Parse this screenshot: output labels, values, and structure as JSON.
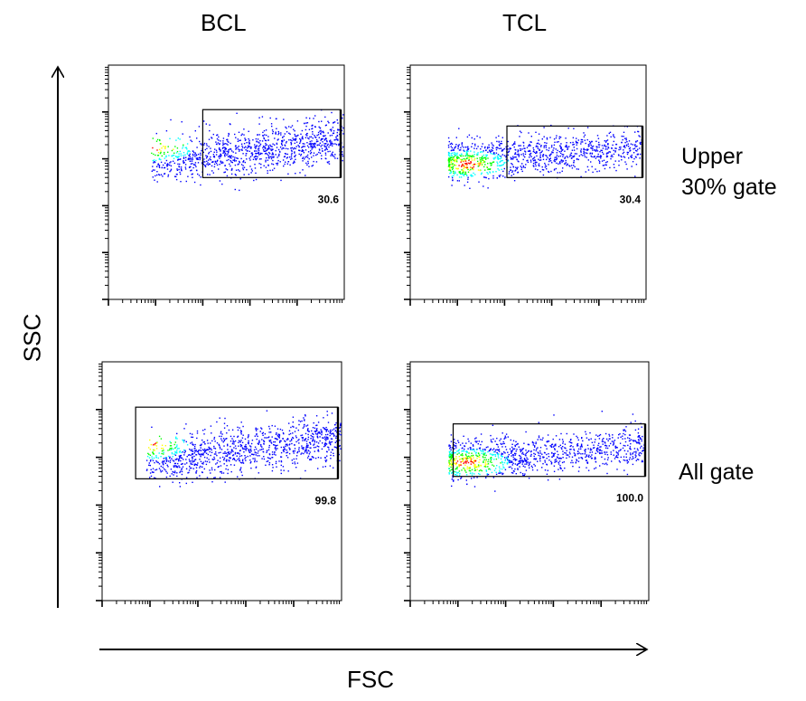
{
  "figure": {
    "column_labels": [
      "BCL",
      "TCL"
    ],
    "row_labels": [
      {
        "line1": "Upper",
        "line2": "30% gate"
      },
      {
        "line1": "All gate",
        "line2": ""
      }
    ],
    "x_axis_label": "FSC",
    "y_axis_label": "SSC"
  },
  "chart_data": [
    {
      "type": "scatter",
      "panel": "BCL / Upper 30% gate",
      "xlabel": "FSC",
      "ylabel": "SSC",
      "x_range": [
        0,
        100
      ],
      "y_range": [
        0,
        100
      ],
      "gate": {
        "x": [
          40,
          100
        ],
        "y": [
          52,
          81
        ]
      },
      "gate_percent": "30.6",
      "density_peak": [
        18,
        65
      ],
      "colors": [
        "#0000ff",
        "#00ffff",
        "#00ff00",
        "#ffff00",
        "#ff0000"
      ]
    },
    {
      "type": "scatter",
      "panel": "TCL / Upper 30% gate",
      "xlabel": "FSC",
      "ylabel": "SSC",
      "x_range": [
        0,
        100
      ],
      "y_range": [
        0,
        100
      ],
      "gate": {
        "x": [
          41,
          100
        ],
        "y": [
          52,
          74
        ]
      },
      "gate_percent": "30.4",
      "density_peak": [
        24,
        58
      ],
      "colors": [
        "#0000ff",
        "#00ffff",
        "#00ff00",
        "#ffff00",
        "#ff0000"
      ]
    },
    {
      "type": "scatter",
      "panel": "BCL / All gate",
      "xlabel": "FSC",
      "ylabel": "SSC",
      "x_range": [
        0,
        100
      ],
      "y_range": [
        0,
        100
      ],
      "gate": {
        "x": [
          14,
          100
        ],
        "y": [
          51,
          81
        ]
      },
      "gate_percent": "99.8",
      "density_peak": [
        18,
        65
      ],
      "colors": [
        "#0000ff",
        "#00ffff",
        "#00ff00",
        "#ffff00",
        "#ff0000"
      ]
    },
    {
      "type": "scatter",
      "panel": "TCL / All gate",
      "xlabel": "FSC",
      "ylabel": "SSC",
      "x_range": [
        0,
        100
      ],
      "y_range": [
        0,
        100
      ],
      "gate": {
        "x": [
          18,
          100
        ],
        "y": [
          52,
          74
        ]
      },
      "gate_percent": "100.0",
      "density_peak": [
        24,
        58
      ],
      "colors": [
        "#0000ff",
        "#00ffff",
        "#00ff00",
        "#ffff00",
        "#ff0000"
      ]
    }
  ]
}
